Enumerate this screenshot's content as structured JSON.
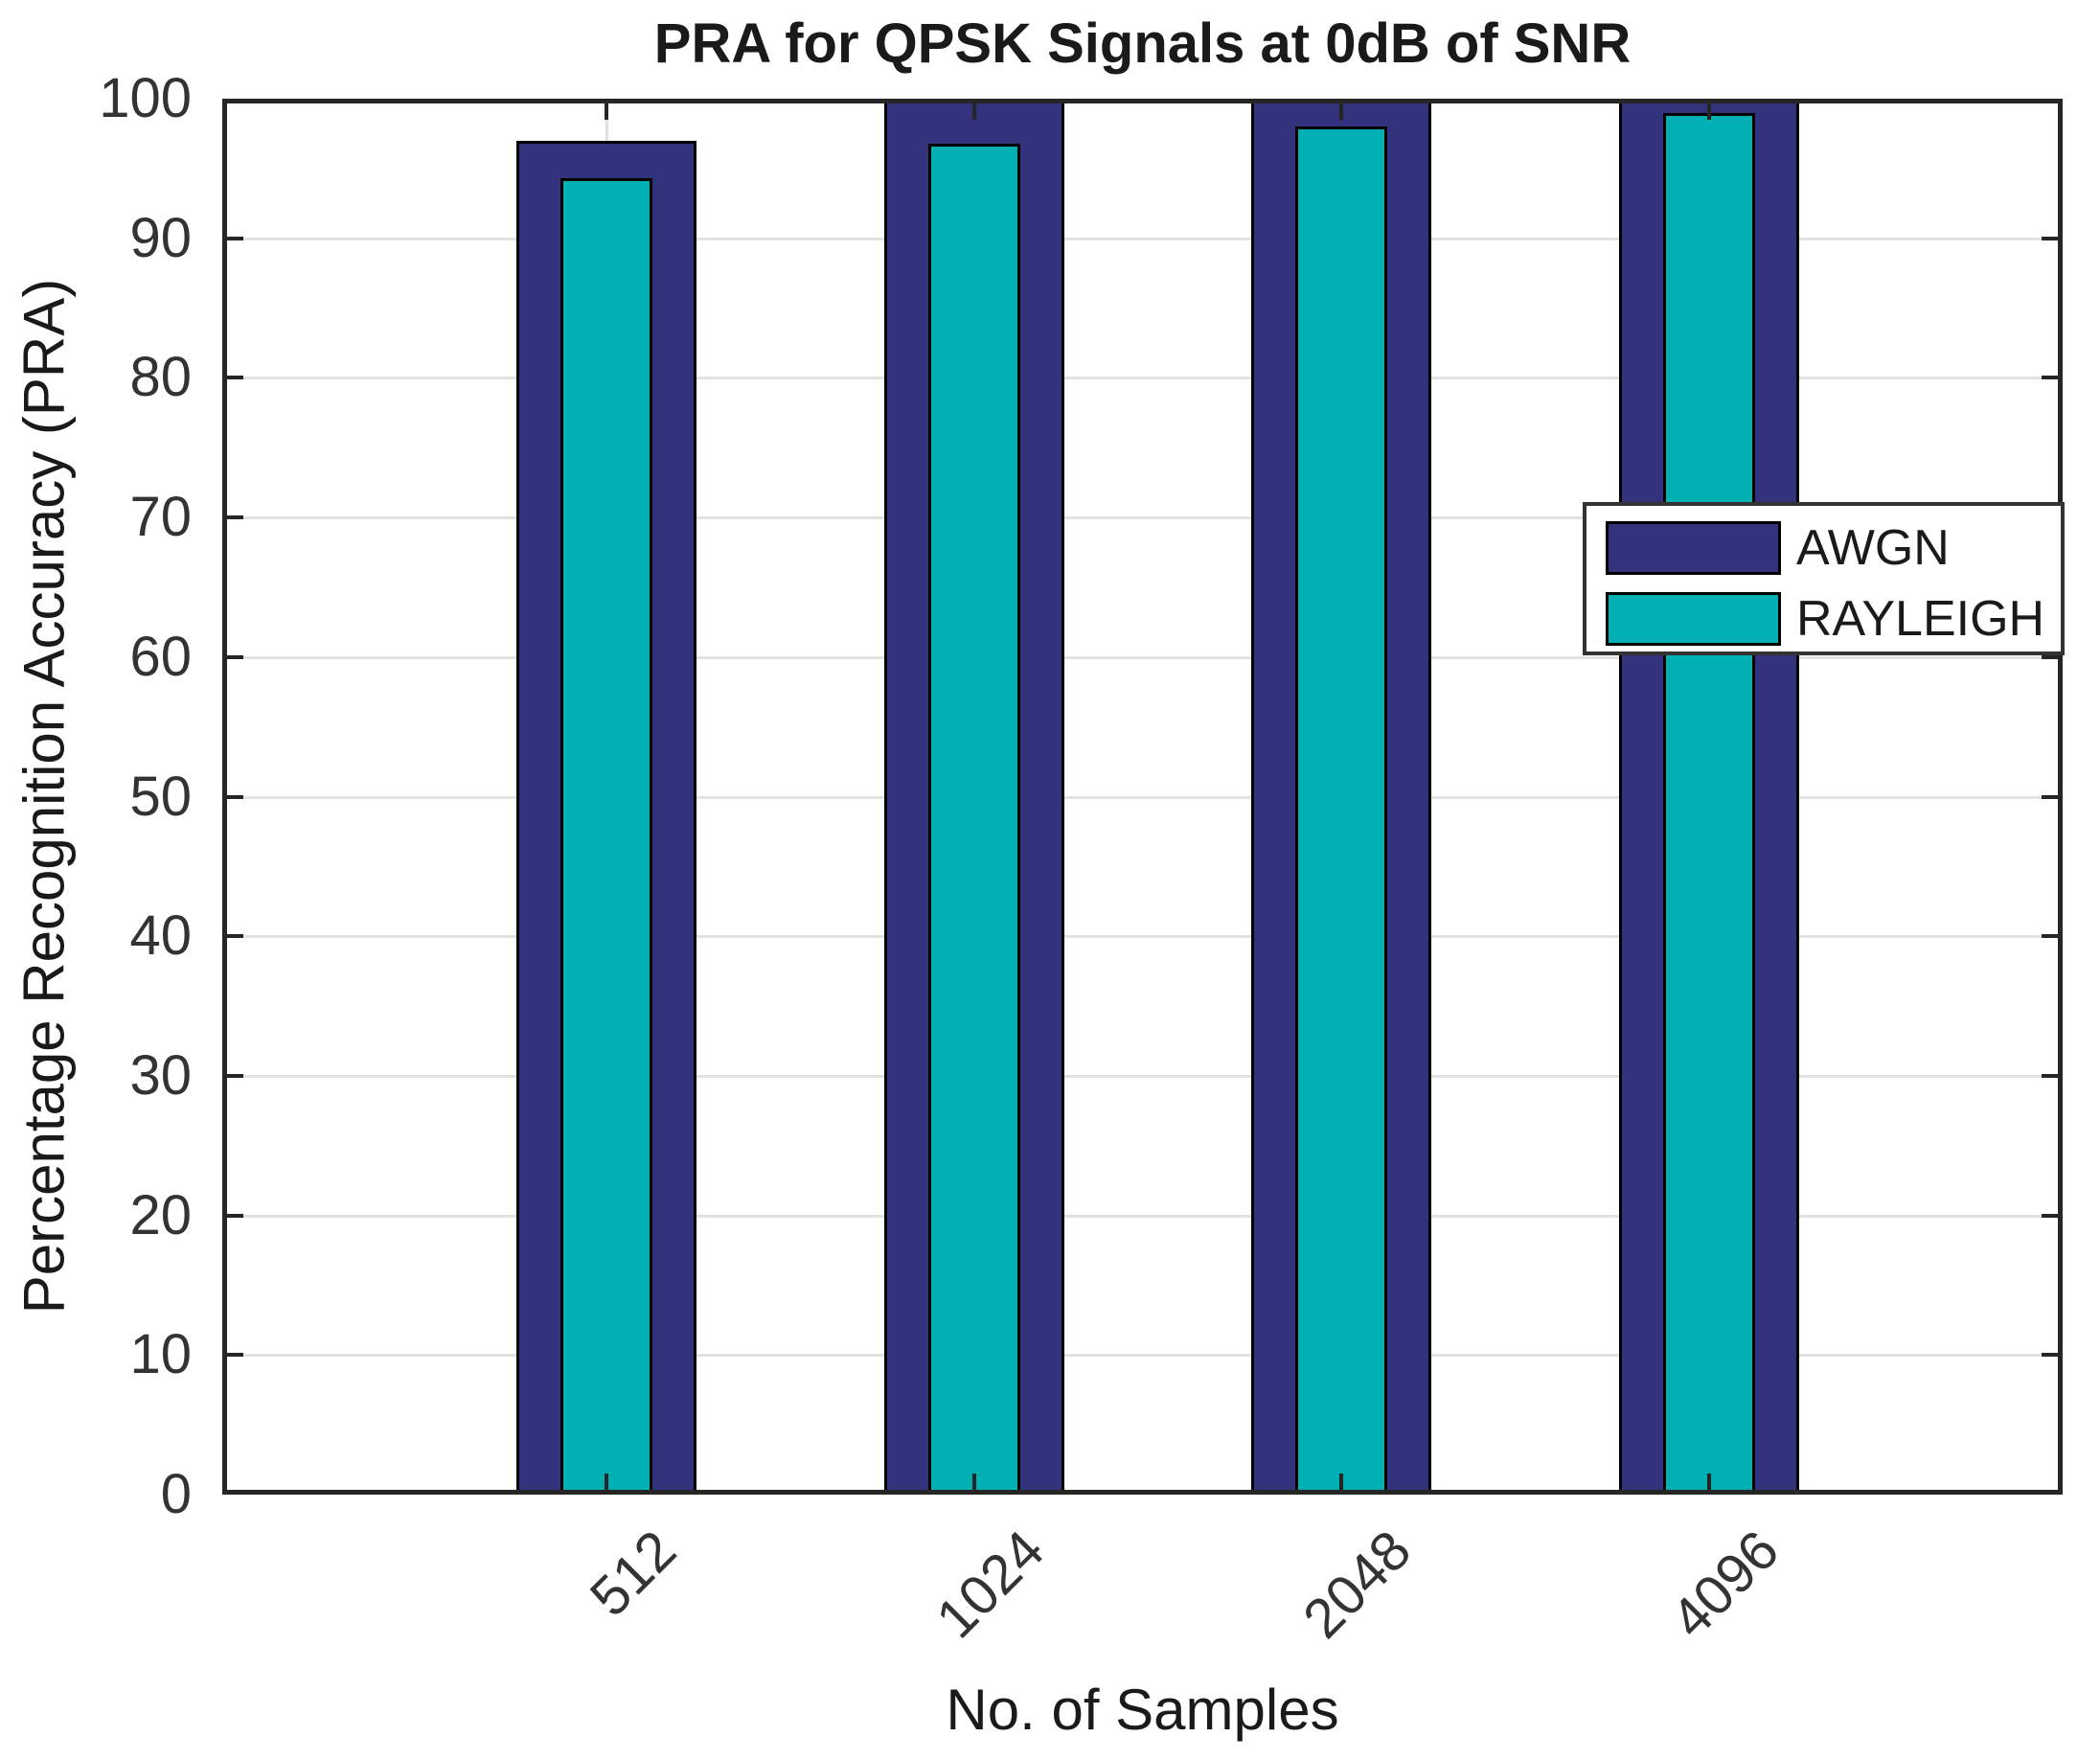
{
  "chart_data": {
    "type": "bar",
    "title": "PRA for QPSK Signals at 0dB of SNR",
    "xlabel": "No. of Samples",
    "ylabel": "Percentage Recognition Accuracy (PRA)",
    "categories": [
      "512",
      "1024",
      "2048",
      "4096"
    ],
    "series": [
      {
        "name": "AWGN",
        "color": "#33337d",
        "values": [
          97,
          100,
          100,
          100
        ]
      },
      {
        "name": "RAYLEIGH",
        "color": "#00b0b2",
        "values": [
          94.3,
          96.8,
          98,
          99
        ]
      }
    ],
    "ylim": [
      0,
      100
    ],
    "yticks": [
      0,
      10,
      20,
      30,
      40,
      50,
      60,
      70,
      80,
      90,
      100
    ],
    "grid": true,
    "bar_style": "overlaid",
    "legend_position": "upper right inside plot",
    "colors": {
      "grid": "#e2e2e2",
      "axis": "#262626",
      "bar_edge": "#000000",
      "background": "#ffffff",
      "text": "#1a1a1a"
    }
  }
}
